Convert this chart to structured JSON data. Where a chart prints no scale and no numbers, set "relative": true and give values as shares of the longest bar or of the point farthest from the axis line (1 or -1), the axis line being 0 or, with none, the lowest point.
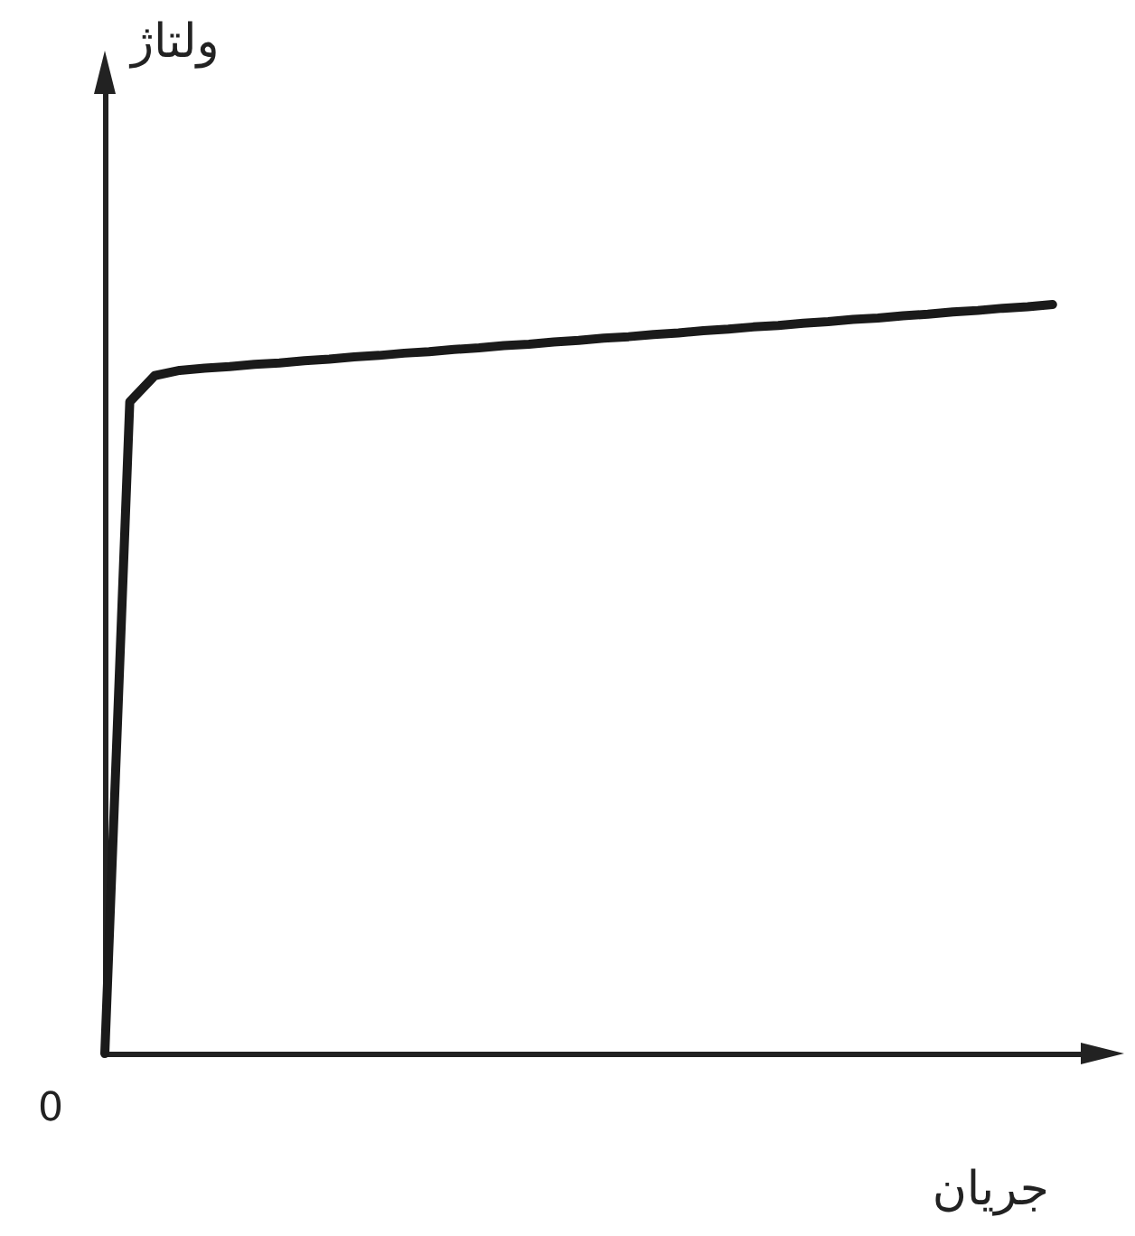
{
  "chart_data": {
    "type": "line",
    "relative": true,
    "xlabel": "جریان",
    "ylabel": "ولتاژ",
    "annotations": [
      "0"
    ],
    "categories": [
      null,
      null,
      null,
      null,
      null,
      null,
      null,
      null,
      null,
      null,
      null,
      null,
      null,
      null,
      null,
      null,
      null,
      null,
      null,
      null,
      null,
      null,
      null,
      null,
      null,
      null,
      null,
      null,
      null,
      null,
      null,
      null,
      null,
      null,
      null,
      null,
      null,
      null,
      null,
      null,
      null
    ],
    "series": [
      {
        "color": "#1a1a1a",
        "values": [
          0,
          0.87,
          0.905,
          0.912,
          0.915,
          0.917,
          0.92,
          0.922,
          0.925,
          0.927,
          0.93,
          0.932,
          0.935,
          0.937,
          0.94,
          0.942,
          0.945,
          0.947,
          0.95,
          0.952,
          0.955,
          0.957,
          0.96,
          0.962,
          0.965,
          0.967,
          0.97,
          0.972,
          0.975,
          0.977,
          0.98,
          0.982,
          0.985,
          0.987,
          0.99,
          0.992,
          0.995,
          0.997,
          1.0,
          null,
          null
        ]
      }
    ]
  }
}
